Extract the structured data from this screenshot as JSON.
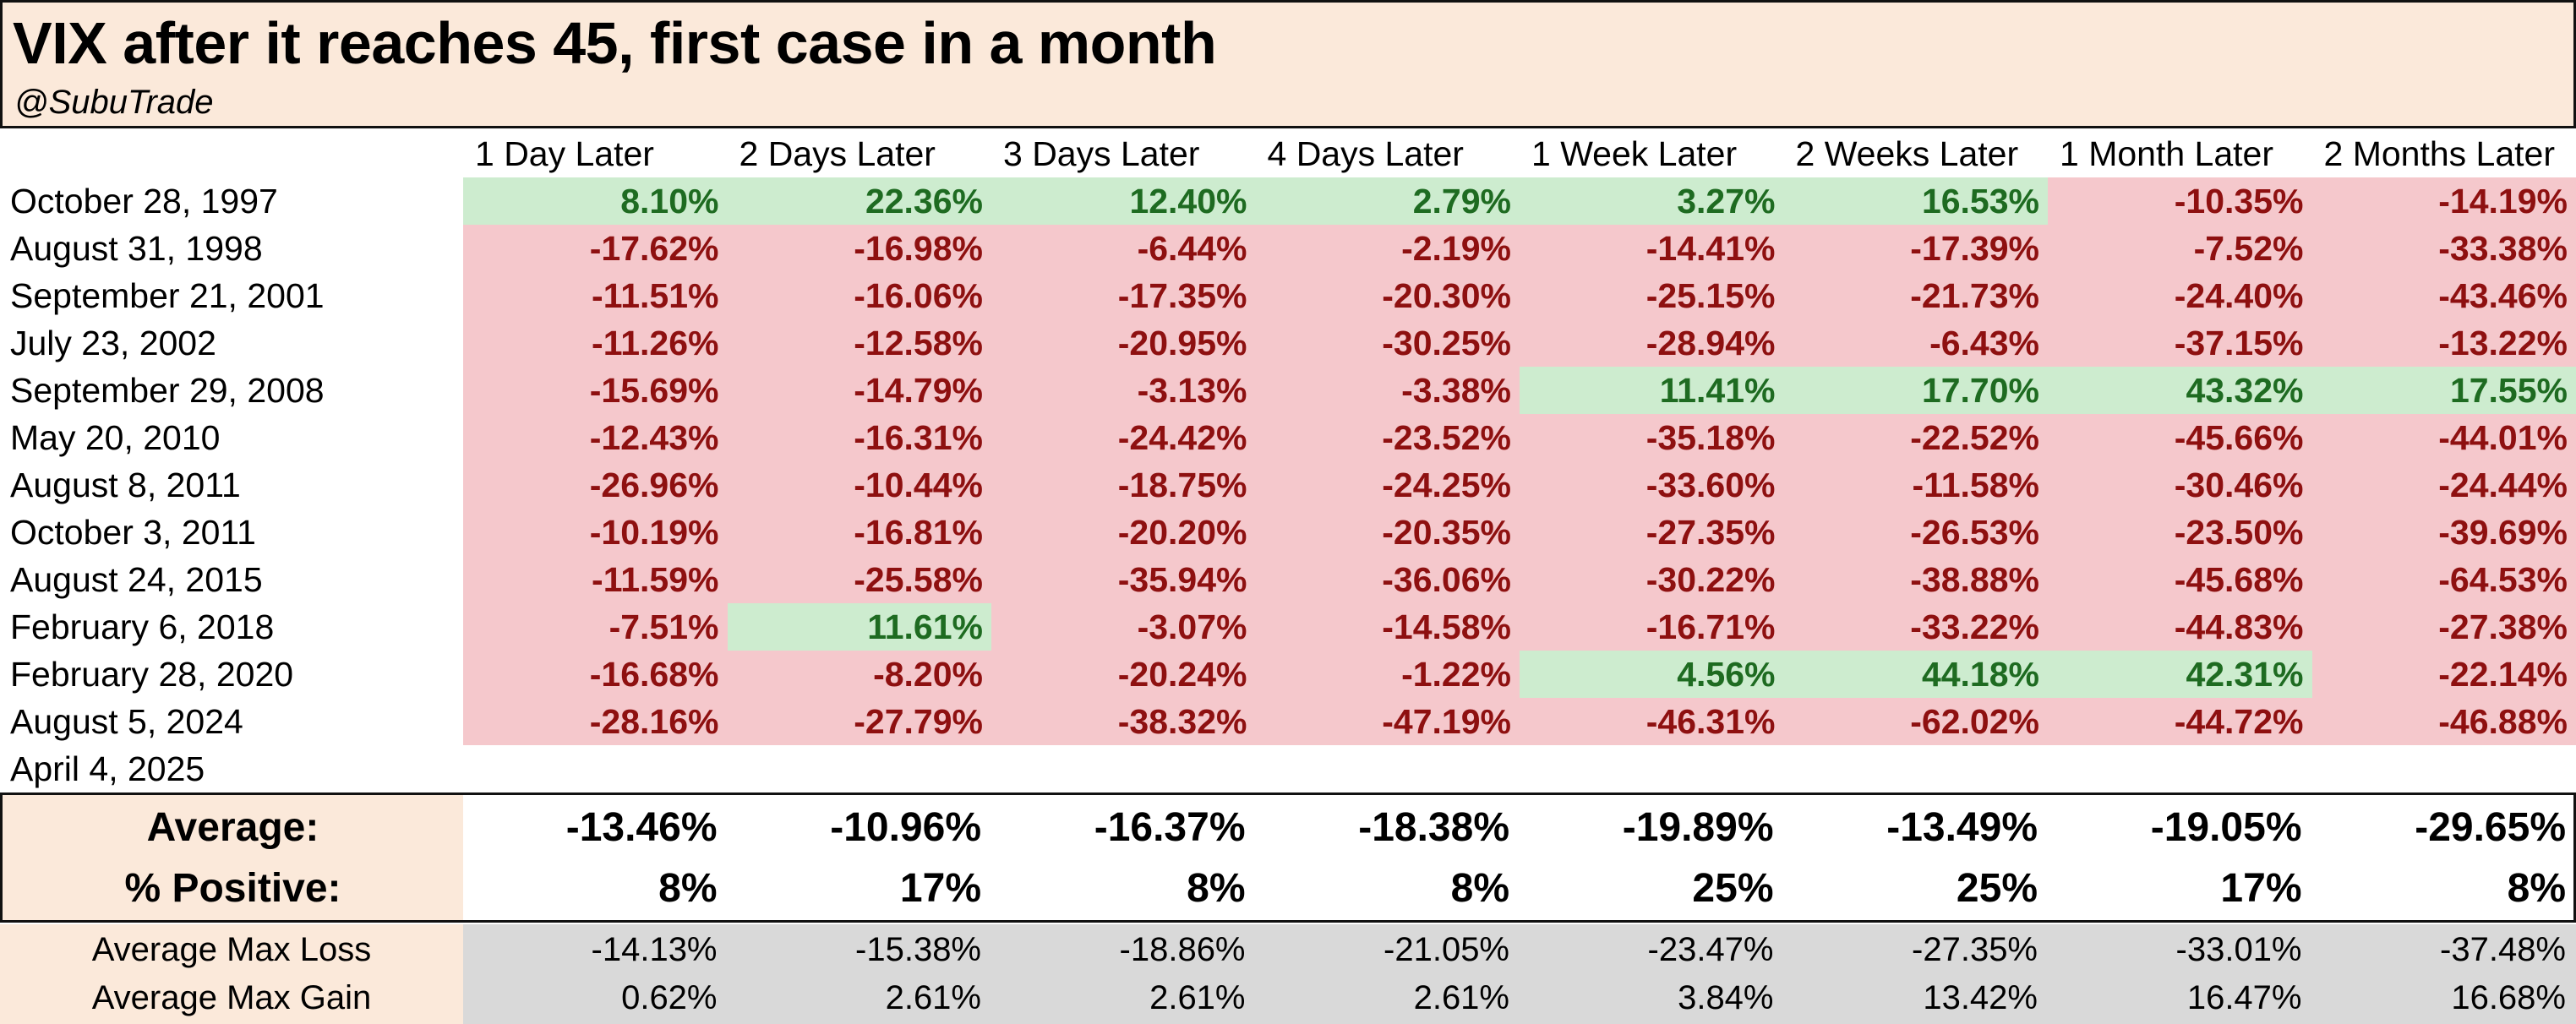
{
  "chart_data": {
    "type": "table",
    "title": "VIX after it reaches 45, first case in a month",
    "subtitle": "@SubuTrade",
    "columns": [
      "1 Day Later",
      "2 Days Later",
      "3 Days Later",
      "4 Days Later",
      "1 Week Later",
      "2 Weeks Later",
      "1 Month Later",
      "2 Months Later"
    ],
    "rows": [
      {
        "date": "October 28, 1997",
        "values": [
          "8.10%",
          "22.36%",
          "12.40%",
          "2.79%",
          "3.27%",
          "16.53%",
          "-10.35%",
          "-14.19%"
        ]
      },
      {
        "date": "August 31, 1998",
        "values": [
          "-17.62%",
          "-16.98%",
          "-6.44%",
          "-2.19%",
          "-14.41%",
          "-17.39%",
          "-7.52%",
          "-33.38%"
        ]
      },
      {
        "date": "September 21, 2001",
        "values": [
          "-11.51%",
          "-16.06%",
          "-17.35%",
          "-20.30%",
          "-25.15%",
          "-21.73%",
          "-24.40%",
          "-43.46%"
        ]
      },
      {
        "date": "July 23, 2002",
        "values": [
          "-11.26%",
          "-12.58%",
          "-20.95%",
          "-30.25%",
          "-28.94%",
          "-6.43%",
          "-37.15%",
          "-13.22%"
        ]
      },
      {
        "date": "September 29, 2008",
        "values": [
          "-15.69%",
          "-14.79%",
          "-3.13%",
          "-3.38%",
          "11.41%",
          "17.70%",
          "43.32%",
          "17.55%"
        ]
      },
      {
        "date": "May 20, 2010",
        "values": [
          "-12.43%",
          "-16.31%",
          "-24.42%",
          "-23.52%",
          "-35.18%",
          "-22.52%",
          "-45.66%",
          "-44.01%"
        ]
      },
      {
        "date": "August 8, 2011",
        "values": [
          "-26.96%",
          "-10.44%",
          "-18.75%",
          "-24.25%",
          "-33.60%",
          "-11.58%",
          "-30.46%",
          "-24.44%"
        ]
      },
      {
        "date": "October 3, 2011",
        "values": [
          "-10.19%",
          "-16.81%",
          "-20.20%",
          "-20.35%",
          "-27.35%",
          "-26.53%",
          "-23.50%",
          "-39.69%"
        ]
      },
      {
        "date": "August 24, 2015",
        "values": [
          "-11.59%",
          "-25.58%",
          "-35.94%",
          "-36.06%",
          "-30.22%",
          "-38.88%",
          "-45.68%",
          "-64.53%"
        ]
      },
      {
        "date": "February 6, 2018",
        "values": [
          "-7.51%",
          "11.61%",
          "-3.07%",
          "-14.58%",
          "-16.71%",
          "-33.22%",
          "-44.83%",
          "-27.38%"
        ]
      },
      {
        "date": "February 28, 2020",
        "values": [
          "-16.68%",
          "-8.20%",
          "-20.24%",
          "-1.22%",
          "4.56%",
          "44.18%",
          "42.31%",
          "-22.14%"
        ]
      },
      {
        "date": "August 5, 2024",
        "values": [
          "-28.16%",
          "-27.79%",
          "-38.32%",
          "-47.19%",
          "-46.31%",
          "-62.02%",
          "-44.72%",
          "-46.88%"
        ]
      },
      {
        "date": "April 4, 2025",
        "values": [
          "",
          "",
          "",
          "",
          "",
          "",
          "",
          ""
        ]
      }
    ],
    "summary": [
      {
        "label": "Average:",
        "values": [
          "-13.46%",
          "-10.96%",
          "-16.37%",
          "-18.38%",
          "-19.89%",
          "-13.49%",
          "-19.05%",
          "-29.65%"
        ]
      },
      {
        "label": "% Positive:",
        "values": [
          "8%",
          "17%",
          "8%",
          "8%",
          "25%",
          "25%",
          "17%",
          "8%"
        ]
      }
    ],
    "extras": [
      {
        "label": "Average Max Loss",
        "values": [
          "-14.13%",
          "-15.38%",
          "-18.86%",
          "-21.05%",
          "-23.47%",
          "-27.35%",
          "-33.01%",
          "-37.48%"
        ]
      },
      {
        "label": "Average Max Gain",
        "values": [
          "0.62%",
          "2.61%",
          "2.61%",
          "2.61%",
          "3.84%",
          "13.42%",
          "16.47%",
          "16.68%"
        ]
      }
    ],
    "colors": {
      "positive_bg": "#cdeccf",
      "positive_text": "#1e6b21",
      "negative_bg": "#f5c8cc",
      "negative_text": "#8e1010",
      "header_bg": "#fbe9da",
      "extras_bg": "#d9d9d9"
    }
  }
}
